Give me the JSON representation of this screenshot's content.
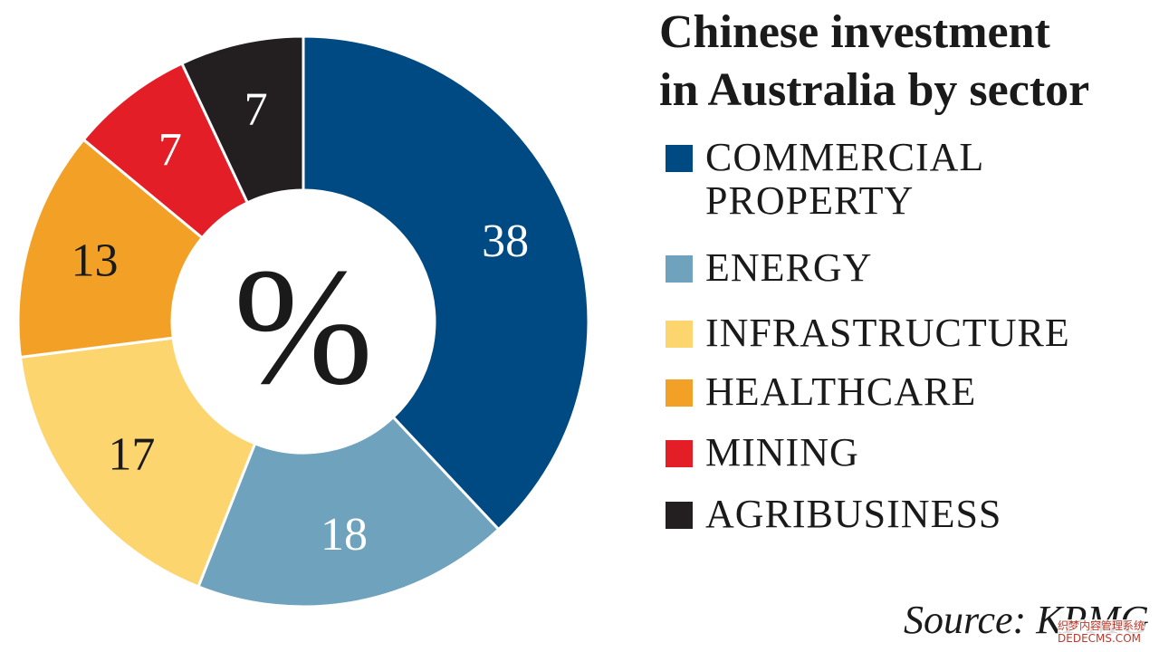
{
  "chart_data": {
    "type": "pie",
    "title": "Chinese investment in Australia by sector",
    "center_label": "%",
    "categories": [
      "COMMERCIAL PROPERTY",
      "ENERGY",
      "INFRASTRUCTURE",
      "HEALTHCARE",
      "MINING",
      "AGRIBUSINESS"
    ],
    "values": [
      38,
      18,
      17,
      13,
      7,
      7
    ],
    "colors": [
      "#004a84",
      "#6fa3bd",
      "#fcd56f",
      "#f3a126",
      "#e31e26",
      "#231f20"
    ],
    "label_colors": [
      "#ffffff",
      "#ffffff",
      "#1a1a1a",
      "#1a1a1a",
      "#ffffff",
      "#ffffff"
    ],
    "legend_position": "right"
  },
  "title_lines": [
    "Chinese investment",
    "in Australia by sector"
  ],
  "legend": [
    {
      "label": "COMMERCIAL\nPROPERTY",
      "color": "#004a84"
    },
    {
      "label": "ENERGY",
      "color": "#6fa3bd"
    },
    {
      "label": "INFRASTRUCTURE",
      "color": "#fcd56f"
    },
    {
      "label": "HEALTHCARE",
      "color": "#f3a126"
    },
    {
      "label": "MINING",
      "color": "#e31e26"
    },
    {
      "label": "AGRIBUSINESS",
      "color": "#231f20"
    }
  ],
  "source": "Source: KPMG",
  "watermark": [
    "织梦内容管理系统",
    "DEDECMS.COM"
  ]
}
